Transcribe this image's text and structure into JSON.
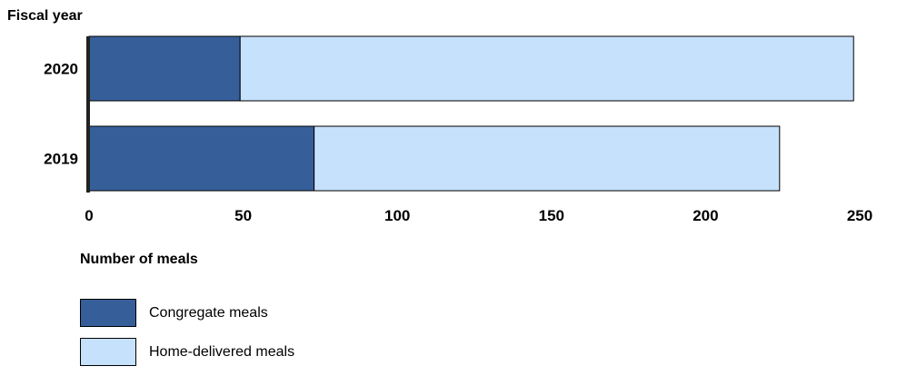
{
  "chart_data": {
    "type": "bar",
    "orientation": "horizontal",
    "stacked": true,
    "y_axis_title": "Fiscal year",
    "xlabel": "Number of meals",
    "categories": [
      "2020",
      "2019"
    ],
    "xlim": [
      0,
      250
    ],
    "xticks": [
      "0",
      "50",
      "100",
      "150",
      "200",
      "250"
    ],
    "grid": false,
    "legend_position": "bottom-left",
    "series": [
      {
        "name": "Congregate meals",
        "color": "#365f9a",
        "values": [
          49,
          73
        ]
      },
      {
        "name": "Home-delivered meals",
        "color": "#c6e1fb",
        "values": [
          199,
          151
        ]
      }
    ]
  }
}
